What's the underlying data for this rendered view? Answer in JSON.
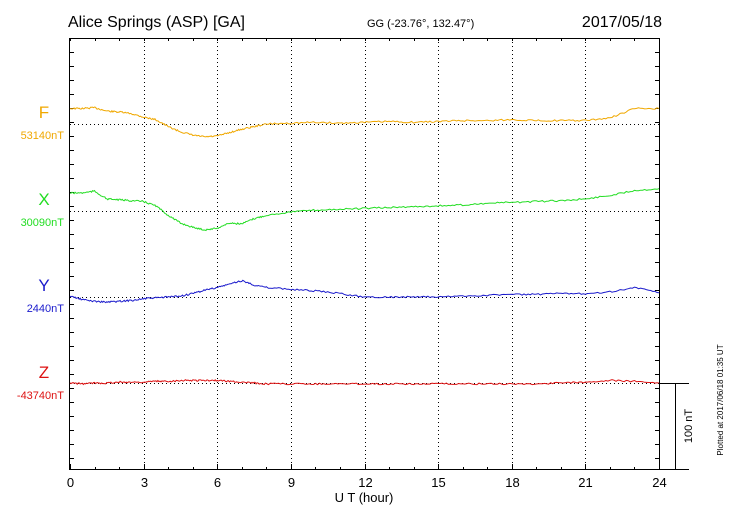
{
  "header": {
    "station": "Alice Springs (ASP)  [GA]",
    "coords": "GG (-23.76°, 132.47°)",
    "date": "2017/05/18"
  },
  "plotted_note": "Plotted at 2017/06/18 01:35 UT",
  "scale_label": "100 nT",
  "chart_data": {
    "type": "line",
    "xlabel": "U T (hour)",
    "xlim": [
      0,
      24
    ],
    "xticks": [
      0,
      3,
      6,
      9,
      12,
      15,
      18,
      21,
      24
    ],
    "ylabel": "",
    "units": "nT",
    "grid": true,
    "series": [
      {
        "name": "F",
        "baseline_label": "53140nT",
        "baseline": 53140,
        "color": "#f0a800",
        "x": [
          0,
          0.5,
          1,
          1.5,
          2,
          2.5,
          3,
          3.5,
          4,
          4.5,
          5,
          5.5,
          6,
          6.5,
          7,
          7.5,
          8,
          9,
          10,
          11,
          12,
          13,
          14,
          15,
          16,
          17,
          18,
          19,
          20,
          21,
          22,
          23,
          24
        ],
        "y": [
          53158,
          53158,
          53159,
          53155,
          53154,
          53152,
          53148,
          53145,
          53137,
          53131,
          53127,
          53125,
          53126,
          53130,
          53134,
          53137,
          53140,
          53141,
          53142,
          53141,
          53142,
          53143,
          53142,
          53143,
          53144,
          53144,
          53145,
          53144,
          53144,
          53144,
          53147,
          53158,
          53158
        ]
      },
      {
        "name": "X",
        "baseline_label": "30090nT",
        "baseline": 30090,
        "color": "#22dd22",
        "x": [
          0,
          0.5,
          1,
          1.5,
          2,
          2.5,
          3,
          3.5,
          4,
          4.5,
          5,
          5.5,
          6,
          6.5,
          7,
          7.5,
          8,
          9,
          10,
          11,
          12,
          13,
          14,
          15,
          16,
          17,
          18,
          19,
          20,
          21,
          22,
          23,
          24
        ],
        "y": [
          30111,
          30111,
          30113,
          30104,
          30103,
          30102,
          30101,
          30096,
          30085,
          30076,
          30071,
          30068,
          30070,
          30076,
          30075,
          30081,
          30085,
          30089,
          30091,
          30092,
          30093,
          30094,
          30095,
          30096,
          30097,
          30099,
          30100,
          30101,
          30102,
          30104,
          30108,
          30114,
          30116
        ]
      },
      {
        "name": "Y",
        "baseline_label": "2440nT",
        "baseline": 2440,
        "color": "#1a1acc",
        "x": [
          0,
          0.5,
          1,
          1.5,
          2,
          2.5,
          3,
          3.5,
          4,
          4.5,
          5,
          5.5,
          6,
          6.5,
          7,
          7.5,
          8,
          9,
          10,
          11,
          12,
          13,
          14,
          15,
          16,
          17,
          18,
          19,
          20,
          21,
          22,
          23,
          24
        ],
        "y": [
          2441,
          2437,
          2435,
          2434,
          2435,
          2436,
          2438,
          2439,
          2440,
          2441,
          2444,
          2448,
          2451,
          2455,
          2459,
          2454,
          2451,
          2449,
          2447,
          2444,
          2440,
          2440,
          2440,
          2440,
          2441,
          2442,
          2443,
          2443,
          2444,
          2444,
          2446,
          2451,
          2445
        ]
      },
      {
        "name": "Z",
        "baseline_label": "-43740nT",
        "baseline": -43740,
        "color": "#dd1111",
        "x": [
          0,
          0.5,
          1,
          1.5,
          2,
          2.5,
          3,
          3.5,
          4,
          4.5,
          5,
          5.5,
          6,
          6.5,
          7,
          7.5,
          8,
          9,
          10,
          11,
          12,
          13,
          14,
          15,
          16,
          17,
          18,
          19,
          20,
          21,
          22,
          23,
          24
        ],
        "y": [
          -43740,
          -43741,
          -43740,
          -43740,
          -43739,
          -43739,
          -43739,
          -43738,
          -43738,
          -43737,
          -43737,
          -43737,
          -43737,
          -43738,
          -43739,
          -43740,
          -43741,
          -43741,
          -43741,
          -43741,
          -43741,
          -43741,
          -43741,
          -43741,
          -43741,
          -43741,
          -43741,
          -43741,
          -43740,
          -43739,
          -43737,
          -43738,
          -43740
        ]
      }
    ]
  }
}
